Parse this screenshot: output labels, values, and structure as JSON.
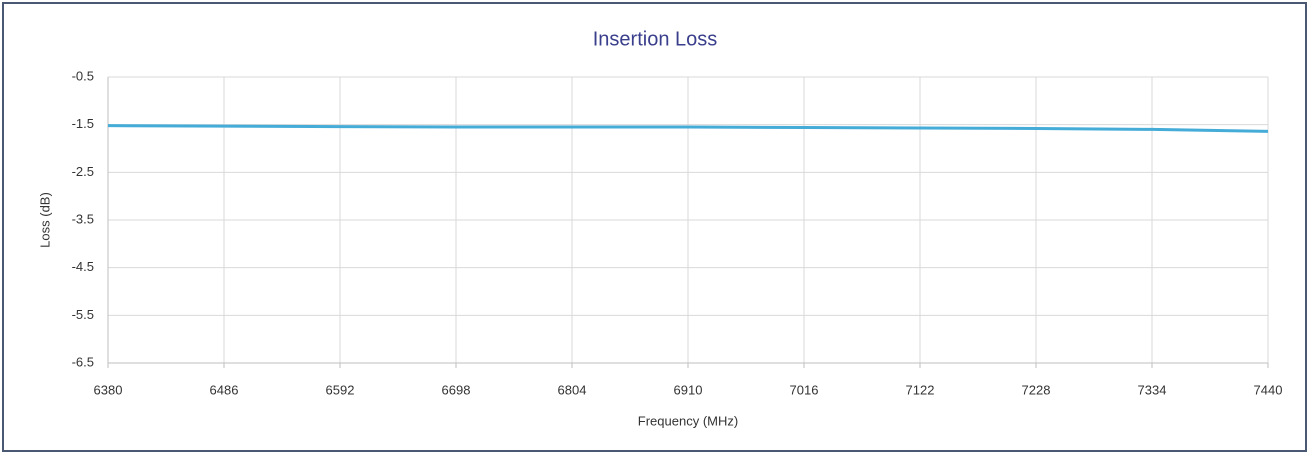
{
  "chart_data": {
    "type": "line",
    "title": "Insertion Loss",
    "xlabel": "Frequency (MHz)",
    "ylabel": "Loss (dB)",
    "x": [
      6380,
      6486,
      6592,
      6698,
      6804,
      6910,
      7016,
      7122,
      7228,
      7334,
      7440
    ],
    "series": [
      {
        "name": "Insertion Loss",
        "color": "#45acd8",
        "values": [
          -1.52,
          -1.53,
          -1.54,
          -1.55,
          -1.55,
          -1.55,
          -1.56,
          -1.57,
          -1.58,
          -1.6,
          -1.64
        ]
      }
    ],
    "xlim": [
      6380,
      7440
    ],
    "xticks": [
      6380,
      6486,
      6592,
      6698,
      6804,
      6910,
      7016,
      7122,
      7228,
      7334,
      7440
    ],
    "ylim": [
      -6.5,
      -0.5
    ],
    "yticks": [
      -6.5,
      -5.5,
      -4.5,
      -3.5,
      -2.5,
      -1.5,
      -0.5
    ],
    "grid": true
  }
}
